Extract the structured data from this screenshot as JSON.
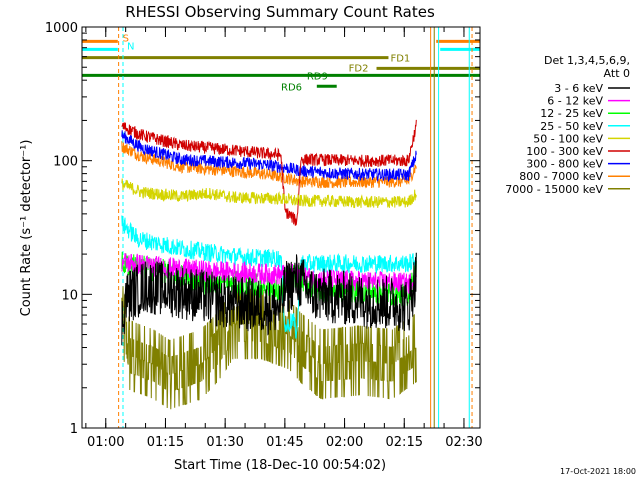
{
  "chart_data": {
    "type": "line",
    "title": "RHESSI Observing Summary Count Rates",
    "xlabel": "Start Time (18-Dec-10 00:54:02)",
    "ylabel": "Count Rate (s⁻¹ detector⁻¹)",
    "yscale": "log",
    "ylim": [
      1,
      1000
    ],
    "xlim_minutes": [
      0,
      100
    ],
    "y_ticks": [
      {
        "label": "1",
        "v": 1
      },
      {
        "label": "10",
        "v": 10
      },
      {
        "label": "100",
        "v": 100
      },
      {
        "label": "1000",
        "v": 1000
      }
    ],
    "x_ticks": [
      {
        "label": "01:00",
        "m": 5.97
      },
      {
        "label": "01:15",
        "m": 20.97
      },
      {
        "label": "01:30",
        "m": 35.97
      },
      {
        "label": "01:45",
        "m": 50.97
      },
      {
        "label": "02:00",
        "m": 65.97
      },
      {
        "label": "02:15",
        "m": 80.97
      },
      {
        "label": "02:30",
        "m": 95.97
      }
    ],
    "legend": {
      "title": "Det 1,3,4,5,6,9,",
      "subtitle": "Att 0",
      "position": "right"
    },
    "series": [
      {
        "name": "3 - 6 keV",
        "color": "#000000",
        "knots": [
          [
            10,
            6
          ],
          [
            11,
            9.5
          ],
          [
            16,
            11.5
          ],
          [
            25,
            10.5
          ],
          [
            34,
            9
          ],
          [
            47,
            8
          ],
          [
            50,
            8
          ],
          [
            51,
            11
          ],
          [
            54,
            13
          ],
          [
            58,
            10
          ],
          [
            70,
            9
          ],
          [
            80,
            8.5
          ],
          [
            82,
            8
          ],
          [
            84,
            14
          ]
        ],
        "noise": 0.09
      },
      {
        "name": "6 - 12 keV",
        "color": "#ff00ff",
        "knots": [
          [
            10,
            17.5
          ],
          [
            20,
            16
          ],
          [
            30,
            15
          ],
          [
            40,
            14.5
          ],
          [
            50,
            14
          ],
          [
            54,
            14.5
          ],
          [
            58,
            13
          ],
          [
            70,
            12.5
          ],
          [
            80,
            12.2
          ],
          [
            82,
            12
          ],
          [
            84,
            13
          ]
        ],
        "noise": 0.035
      },
      {
        "name": "12 - 25 keV",
        "color": "#00ff00",
        "knots": [
          [
            10,
            17
          ],
          [
            20,
            15
          ],
          [
            30,
            12.5
          ],
          [
            40,
            12
          ],
          [
            47,
            11.5
          ],
          [
            50,
            10
          ],
          [
            51,
            13
          ],
          [
            54,
            14
          ],
          [
            58,
            11
          ],
          [
            70,
            10.5
          ],
          [
            80,
            10
          ],
          [
            82,
            10
          ],
          [
            84,
            15
          ]
        ],
        "noise": 0.04
      },
      {
        "name": "25 - 50 keV",
        "color": "#00ffff",
        "knots": [
          [
            10,
            34
          ],
          [
            14,
            26
          ],
          [
            25,
            22
          ],
          [
            40,
            19
          ],
          [
            50,
            18.5
          ],
          [
            51,
            5.5
          ],
          [
            53,
            6.5
          ],
          [
            54,
            5
          ],
          [
            55,
            17
          ],
          [
            70,
            17
          ],
          [
            82,
            17
          ],
          [
            84,
            18
          ]
        ],
        "noise": 0.03
      },
      {
        "name": "50 - 100 keV",
        "color": "#d4d400",
        "knots": [
          [
            10,
            67
          ],
          [
            15,
            58
          ],
          [
            25,
            54
          ],
          [
            32,
            57
          ],
          [
            38,
            53
          ],
          [
            50,
            52
          ],
          [
            54,
            50
          ],
          [
            60,
            50
          ],
          [
            70,
            49
          ],
          [
            82,
            49
          ],
          [
            84,
            57
          ]
        ],
        "noise": 0.02
      },
      {
        "name": "100 - 300 keV",
        "color": "#d00000",
        "knots": [
          [
            10,
            182
          ],
          [
            15,
            155
          ],
          [
            25,
            130
          ],
          [
            40,
            118
          ],
          [
            50,
            110
          ],
          [
            51,
            42
          ],
          [
            54,
            35
          ],
          [
            55,
            102
          ],
          [
            70,
            100
          ],
          [
            82,
            100
          ],
          [
            84,
            185
          ]
        ],
        "noise": 0.02
      },
      {
        "name": "300 - 800 keV",
        "color": "#0000ff",
        "knots": [
          [
            10,
            155
          ],
          [
            15,
            125
          ],
          [
            25,
            102
          ],
          [
            35,
            98
          ],
          [
            45,
            94
          ],
          [
            50,
            90
          ],
          [
            55,
            84
          ],
          [
            65,
            80
          ],
          [
            82,
            78
          ],
          [
            84,
            110
          ]
        ],
        "noise": 0.02
      },
      {
        "name": "800 - 7000 keV",
        "color": "#ff8000",
        "knots": [
          [
            10,
            128
          ],
          [
            15,
            108
          ],
          [
            25,
            90
          ],
          [
            35,
            85
          ],
          [
            45,
            80
          ],
          [
            50,
            76
          ],
          [
            55,
            70
          ],
          [
            65,
            69
          ],
          [
            82,
            70
          ],
          [
            84,
            92
          ]
        ],
        "noise": 0.02
      },
      {
        "name": "7000 - 15000 keV",
        "color": "#808000",
        "knots": [
          [
            10,
            7
          ],
          [
            12,
            3.5
          ],
          [
            18,
            3
          ],
          [
            22,
            2.5
          ],
          [
            30,
            3
          ],
          [
            34,
            4
          ],
          [
            38,
            6
          ],
          [
            45,
            6
          ],
          [
            52,
            5
          ],
          [
            55,
            4
          ],
          [
            60,
            3
          ],
          [
            70,
            3.2
          ],
          [
            78,
            3
          ],
          [
            84,
            4
          ]
        ],
        "noise": 0.13
      }
    ],
    "flags": [
      {
        "name": "S",
        "color": "#ff8000",
        "label_color": "#ff8000",
        "y": 780,
        "segments": [
          [
            0,
            9
          ],
          [
            89,
            100
          ]
        ]
      },
      {
        "name": "N",
        "color": "#00ffff",
        "label_color": "#00ffff",
        "y": 680,
        "segments": [
          [
            0,
            9
          ],
          [
            90,
            100
          ]
        ]
      },
      {
        "name": "FD1",
        "color": "#808000",
        "label_color": "#808000",
        "y": 590,
        "segments": [
          [
            0,
            77
          ]
        ]
      },
      {
        "name": "FD2",
        "color": "#808000",
        "label_color": "#808000",
        "y": 490,
        "segments": [
          [
            74,
            100
          ]
        ]
      },
      {
        "name": "RD9",
        "color": "#008000",
        "label_color": "#008000",
        "y": 435,
        "segments": [
          [
            0,
            100
          ]
        ]
      },
      {
        "name": "RD6",
        "color": "#008000",
        "label_color": "#008000",
        "y": 360,
        "segments": [
          [
            59,
            64
          ]
        ]
      }
    ],
    "vlines": [
      {
        "m": 9.2,
        "color": "#ff8000",
        "dashed": true
      },
      {
        "m": 10.3,
        "color": "#00ffff",
        "dashed": true
      },
      {
        "m": 87.6,
        "color": "#ff8000",
        "dashed": false
      },
      {
        "m": 88.5,
        "color": "#808000",
        "dashed": false
      },
      {
        "m": 89.6,
        "color": "#00ffff",
        "dashed": false
      },
      {
        "m": 97.3,
        "color": "#00ffff",
        "dashed": false
      },
      {
        "m": 98.0,
        "color": "#ff8000",
        "dashed": true
      }
    ],
    "timestamp": "17-Oct-2021 18:00"
  }
}
